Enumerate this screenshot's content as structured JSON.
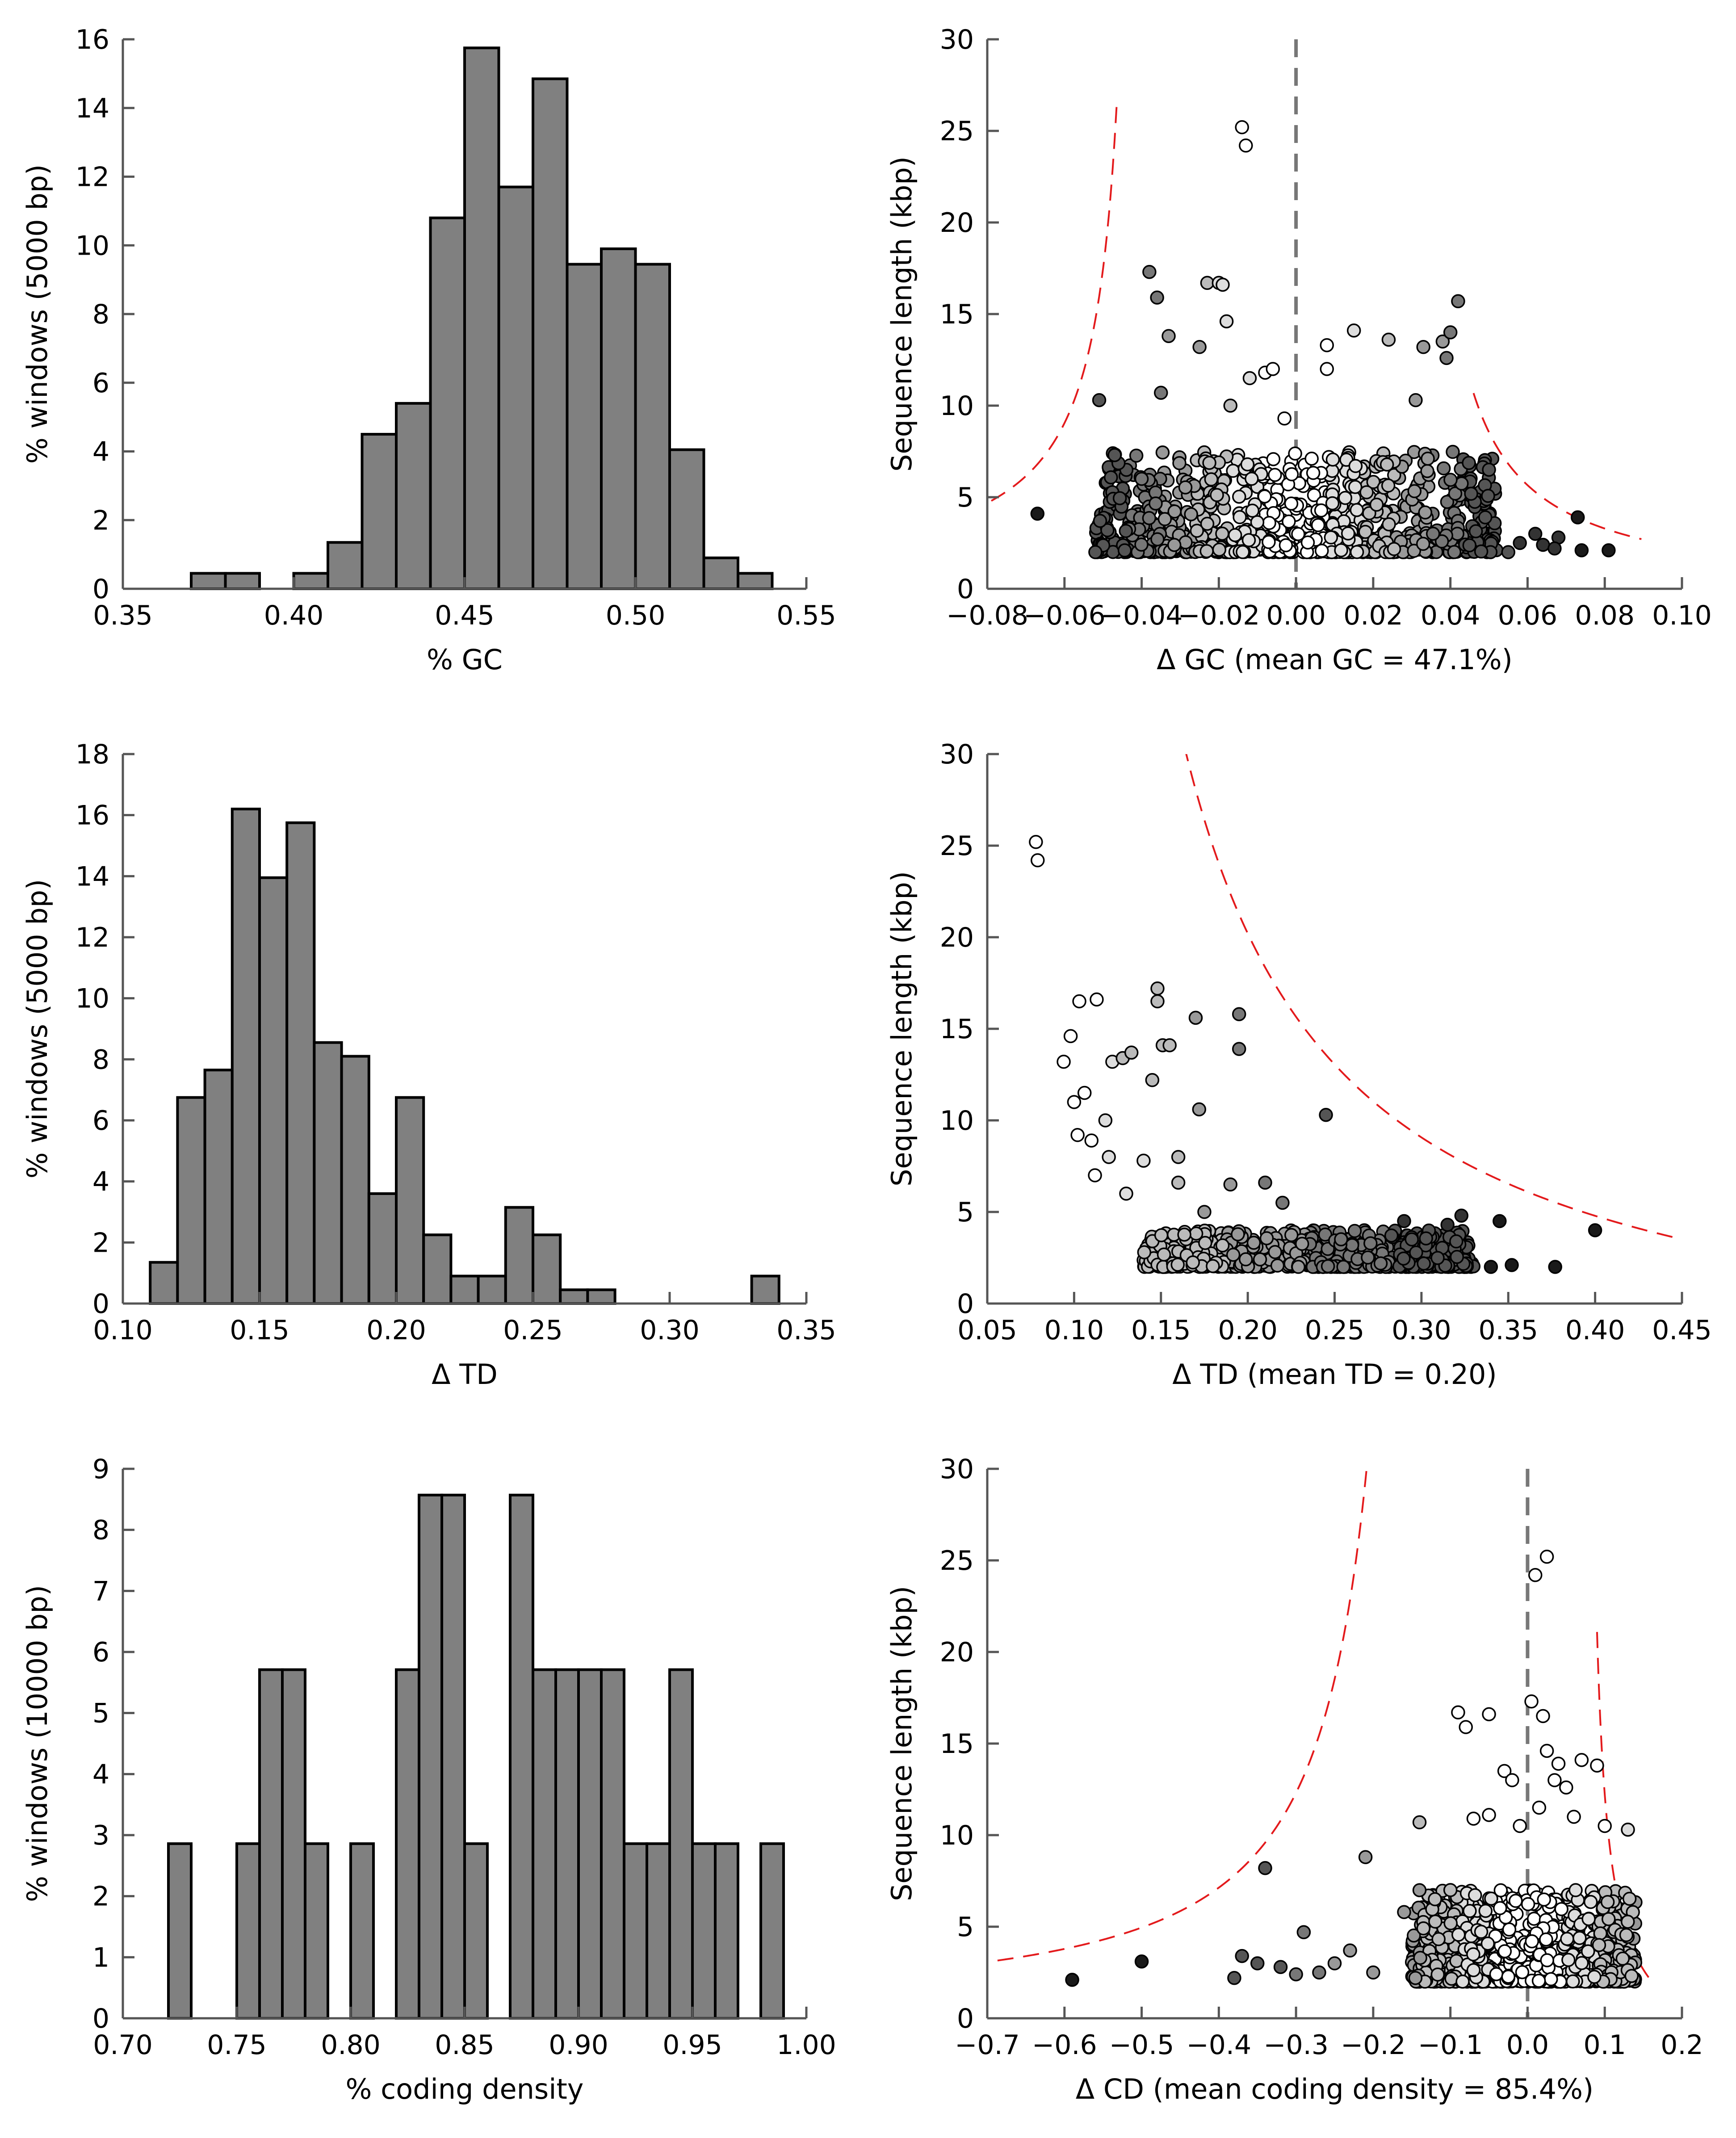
{
  "chart_data": [
    {
      "type": "bar",
      "id": "gc-hist",
      "xlabel": "% GC",
      "ylabel": "% windows (5000 bp)",
      "xlim": [
        0.35,
        0.55
      ],
      "ylim": [
        0,
        16
      ],
      "xticks": [
        "0.35",
        "0.40",
        "0.45",
        "0.50",
        "0.55"
      ],
      "yticks": [
        "0",
        "2",
        "4",
        "6",
        "8",
        "10",
        "12",
        "14",
        "16"
      ],
      "bin_width": 0.01,
      "bins": [
        {
          "start": 0.37,
          "value": 0.45
        },
        {
          "start": 0.38,
          "value": 0.45
        },
        {
          "start": 0.4,
          "value": 0.45
        },
        {
          "start": 0.41,
          "value": 1.35
        },
        {
          "start": 0.42,
          "value": 4.5
        },
        {
          "start": 0.43,
          "value": 5.4
        },
        {
          "start": 0.44,
          "value": 10.8
        },
        {
          "start": 0.45,
          "value": 15.75
        },
        {
          "start": 0.46,
          "value": 11.7
        },
        {
          "start": 0.47,
          "value": 14.85
        },
        {
          "start": 0.48,
          "value": 9.45
        },
        {
          "start": 0.49,
          "value": 9.9
        },
        {
          "start": 0.5,
          "value": 9.45
        },
        {
          "start": 0.51,
          "value": 4.05
        },
        {
          "start": 0.52,
          "value": 0.9
        },
        {
          "start": 0.53,
          "value": 0.45
        }
      ]
    },
    {
      "type": "scatter",
      "id": "gc-scatter",
      "xlabel": "Δ GC (mean GC = 47.1%)",
      "ylabel": "Sequence length (kbp)",
      "xlim": [
        -0.08,
        0.1
      ],
      "ylim": [
        0,
        30
      ],
      "xticks": [
        "−0.08",
        "−0.06",
        "−0.04",
        "−0.02",
        "0.00",
        "0.02",
        "0.04",
        "0.06",
        "0.08",
        "0.10"
      ],
      "yticks": [
        "0",
        "5",
        "10",
        "15",
        "20",
        "25",
        "30"
      ],
      "reference_line_x": 0,
      "cloud": {
        "center": 0,
        "halfwidth": 0.052,
        "ymin": 2,
        "ymax": 7.5,
        "count": 900
      },
      "points": [
        [
          -0.067,
          4.1,
          "#1a1a1a"
        ],
        [
          -0.052,
          2.0,
          "#555555"
        ],
        [
          -0.051,
          10.3,
          "#555555"
        ],
        [
          -0.038,
          17.3,
          "#777777"
        ],
        [
          -0.036,
          15.9,
          "#777777"
        ],
        [
          -0.033,
          13.8,
          "#999999"
        ],
        [
          -0.035,
          10.7,
          "#777777"
        ],
        [
          -0.047,
          7.3,
          "#555555"
        ],
        [
          -0.04,
          6.0,
          "#777777"
        ],
        [
          -0.025,
          13.2,
          "#999999"
        ],
        [
          -0.023,
          16.7,
          "#bbbbbb"
        ],
        [
          -0.02,
          16.7,
          "#dddddd"
        ],
        [
          -0.019,
          16.6,
          "#dddddd"
        ],
        [
          -0.018,
          14.6,
          "#dddddd"
        ],
        [
          -0.014,
          25.2,
          "#ffffff"
        ],
        [
          -0.013,
          24.2,
          "#ffffff"
        ],
        [
          -0.017,
          10.0,
          "#bbbbbb"
        ],
        [
          -0.012,
          11.5,
          "#dddddd"
        ],
        [
          -0.008,
          11.8,
          "#ffffff"
        ],
        [
          -0.006,
          12.0,
          "#ffffff"
        ],
        [
          -0.003,
          9.3,
          "#ffffff"
        ],
        [
          0.008,
          13.3,
          "#ffffff"
        ],
        [
          0.008,
          12.0,
          "#ffffff"
        ],
        [
          0.015,
          14.1,
          "#dddddd"
        ],
        [
          0.024,
          13.6,
          "#bbbbbb"
        ],
        [
          0.033,
          13.2,
          "#999999"
        ],
        [
          0.038,
          13.5,
          "#999999"
        ],
        [
          0.04,
          14.0,
          "#777777"
        ],
        [
          0.042,
          15.7,
          "#777777"
        ],
        [
          0.039,
          12.6,
          "#777777"
        ],
        [
          0.031,
          10.3,
          "#999999"
        ],
        [
          0.05,
          6.5,
          "#555555"
        ],
        [
          0.055,
          2.0,
          "#555555"
        ],
        [
          0.058,
          2.5,
          "#333333"
        ],
        [
          0.064,
          2.4,
          "#333333"
        ],
        [
          0.068,
          2.8,
          "#333333"
        ],
        [
          0.074,
          2.1,
          "#1a1a1a"
        ],
        [
          0.073,
          3.9,
          "#1a1a1a"
        ],
        [
          0.081,
          2.1,
          "#1a1a1a"
        ],
        [
          0.067,
          2.2,
          "#333333"
        ],
        [
          0.062,
          3.0,
          "#333333"
        ]
      ]
    },
    {
      "type": "bar",
      "id": "td-hist",
      "xlabel": "Δ TD",
      "ylabel": "% windows (5000 bp)",
      "xlim": [
        0.1,
        0.35
      ],
      "ylim": [
        0,
        18
      ],
      "xticks": [
        "0.10",
        "0.15",
        "0.20",
        "0.25",
        "0.30",
        "0.35"
      ],
      "yticks": [
        "0",
        "2",
        "4",
        "6",
        "8",
        "10",
        "12",
        "14",
        "16",
        "18"
      ],
      "bin_width": 0.01,
      "bins": [
        {
          "start": 0.11,
          "value": 1.35
        },
        {
          "start": 0.12,
          "value": 6.75
        },
        {
          "start": 0.13,
          "value": 7.65
        },
        {
          "start": 0.14,
          "value": 16.2
        },
        {
          "start": 0.15,
          "value": 13.95
        },
        {
          "start": 0.16,
          "value": 15.75
        },
        {
          "start": 0.17,
          "value": 8.55
        },
        {
          "start": 0.18,
          "value": 8.1
        },
        {
          "start": 0.19,
          "value": 3.6
        },
        {
          "start": 0.2,
          "value": 6.75
        },
        {
          "start": 0.21,
          "value": 2.25
        },
        {
          "start": 0.22,
          "value": 0.9
        },
        {
          "start": 0.23,
          "value": 0.9
        },
        {
          "start": 0.24,
          "value": 3.15
        },
        {
          "start": 0.25,
          "value": 2.25
        },
        {
          "start": 0.26,
          "value": 0.45
        },
        {
          "start": 0.27,
          "value": 0.45
        },
        {
          "start": 0.33,
          "value": 0.9
        }
      ]
    },
    {
      "type": "scatter",
      "id": "td-scatter",
      "xlabel": "Δ TD (mean TD = 0.20)",
      "ylabel": "Sequence length (kbp)",
      "xlim": [
        0.05,
        0.45
      ],
      "ylim": [
        0,
        30
      ],
      "xticks": [
        "0.05",
        "0.10",
        "0.15",
        "0.20",
        "0.25",
        "0.30",
        "0.35",
        "0.40",
        "0.45"
      ],
      "yticks": [
        "0",
        "5",
        "10",
        "15",
        "20",
        "25",
        "30"
      ],
      "cloud": {
        "xmin": 0.14,
        "xmax": 0.33,
        "ymin": 2,
        "ymax": 4.0,
        "count": 700
      },
      "points": [
        [
          0.078,
          25.2,
          "#ffffff"
        ],
        [
          0.079,
          24.2,
          "#ffffff"
        ],
        [
          0.098,
          14.6,
          "#ffffff"
        ],
        [
          0.103,
          16.5,
          "#ffffff"
        ],
        [
          0.113,
          16.6,
          "#ffffff"
        ],
        [
          0.094,
          13.2,
          "#ffffff"
        ],
        [
          0.1,
          11.0,
          "#ffffff"
        ],
        [
          0.106,
          11.5,
          "#ffffff"
        ],
        [
          0.122,
          13.2,
          "#dddddd"
        ],
        [
          0.128,
          13.4,
          "#bbbbbb"
        ],
        [
          0.133,
          13.7,
          "#bbbbbb"
        ],
        [
          0.148,
          17.2,
          "#bbbbbb"
        ],
        [
          0.148,
          16.5,
          "#bbbbbb"
        ],
        [
          0.151,
          14.1,
          "#bbbbbb"
        ],
        [
          0.155,
          14.1,
          "#bbbbbb"
        ],
        [
          0.145,
          12.2,
          "#bbbbbb"
        ],
        [
          0.17,
          15.6,
          "#999999"
        ],
        [
          0.195,
          15.8,
          "#777777"
        ],
        [
          0.195,
          13.9,
          "#777777"
        ],
        [
          0.172,
          10.6,
          "#999999"
        ],
        [
          0.245,
          10.3,
          "#555555"
        ],
        [
          0.29,
          4.5,
          "#333333"
        ],
        [
          0.315,
          4.3,
          "#333333"
        ],
        [
          0.323,
          4.8,
          "#333333"
        ],
        [
          0.345,
          4.5,
          "#1a1a1a"
        ],
        [
          0.34,
          2.0,
          "#1a1a1a"
        ],
        [
          0.352,
          2.1,
          "#1a1a1a"
        ],
        [
          0.377,
          2.0,
          "#1a1a1a"
        ],
        [
          0.4,
          4.0,
          "#1a1a1a"
        ],
        [
          0.11,
          8.9,
          "#ffffff"
        ],
        [
          0.102,
          9.2,
          "#ffffff"
        ],
        [
          0.12,
          8.0,
          "#dddddd"
        ],
        [
          0.13,
          6.0,
          "#dddddd"
        ],
        [
          0.112,
          7.0,
          "#ffffff"
        ],
        [
          0.118,
          10.0,
          "#dddddd"
        ],
        [
          0.14,
          7.8,
          "#dddddd"
        ],
        [
          0.16,
          6.6,
          "#bbbbbb"
        ],
        [
          0.175,
          5.0,
          "#999999"
        ],
        [
          0.19,
          6.5,
          "#999999"
        ],
        [
          0.21,
          6.6,
          "#777777"
        ],
        [
          0.22,
          5.5,
          "#777777"
        ],
        [
          0.16,
          8.0,
          "#bbbbbb"
        ]
      ]
    },
    {
      "type": "bar",
      "id": "cd-hist",
      "xlabel": "% coding density",
      "ylabel": "% windows (10000 bp)",
      "xlim": [
        0.7,
        1.0
      ],
      "ylim": [
        0,
        9
      ],
      "xticks": [
        "0.70",
        "0.75",
        "0.80",
        "0.85",
        "0.90",
        "0.95",
        "1.00"
      ],
      "yticks": [
        "0",
        "1",
        "2",
        "3",
        "4",
        "5",
        "6",
        "7",
        "8",
        "9"
      ],
      "bin_width": 0.01,
      "bins": [
        {
          "start": 0.72,
          "value": 2.86
        },
        {
          "start": 0.75,
          "value": 2.86
        },
        {
          "start": 0.76,
          "value": 5.71
        },
        {
          "start": 0.77,
          "value": 5.71
        },
        {
          "start": 0.78,
          "value": 2.86
        },
        {
          "start": 0.8,
          "value": 2.86
        },
        {
          "start": 0.82,
          "value": 5.71
        },
        {
          "start": 0.83,
          "value": 8.57
        },
        {
          "start": 0.84,
          "value": 8.57
        },
        {
          "start": 0.85,
          "value": 2.86
        },
        {
          "start": 0.87,
          "value": 8.57
        },
        {
          "start": 0.88,
          "value": 5.71
        },
        {
          "start": 0.89,
          "value": 5.71
        },
        {
          "start": 0.9,
          "value": 5.71
        },
        {
          "start": 0.91,
          "value": 5.71
        },
        {
          "start": 0.92,
          "value": 2.86
        },
        {
          "start": 0.93,
          "value": 2.86
        },
        {
          "start": 0.94,
          "value": 5.71
        },
        {
          "start": 0.95,
          "value": 2.86
        },
        {
          "start": 0.96,
          "value": 2.86
        },
        {
          "start": 0.98,
          "value": 2.86
        }
      ]
    },
    {
      "type": "scatter",
      "id": "cd-scatter",
      "xlabel": "Δ CD (mean coding density = 85.4%)",
      "ylabel": "Sequence length (kbp)",
      "xlim": [
        -0.7,
        0.2
      ],
      "ylim": [
        0,
        30
      ],
      "xticks": [
        "−0.7",
        "−0.6",
        "−0.5",
        "−0.4",
        "−0.3",
        "−0.2",
        "−0.1",
        "0.0",
        "0.1",
        "0.2"
      ],
      "yticks": [
        "0",
        "5",
        "10",
        "15",
        "20",
        "25",
        "30"
      ],
      "reference_line_x": 0,
      "cloud": {
        "xmin": -0.15,
        "xmax": 0.14,
        "ymin": 2,
        "ymax": 7.0,
        "count": 900
      },
      "points": [
        [
          -0.59,
          2.1,
          "#1a1a1a"
        ],
        [
          -0.5,
          3.1,
          "#1a1a1a"
        ],
        [
          -0.38,
          2.2,
          "#555555"
        ],
        [
          -0.37,
          3.4,
          "#555555"
        ],
        [
          -0.35,
          3.0,
          "#555555"
        ],
        [
          -0.34,
          8.2,
          "#555555"
        ],
        [
          -0.32,
          2.8,
          "#555555"
        ],
        [
          -0.3,
          2.4,
          "#777777"
        ],
        [
          -0.29,
          4.7,
          "#777777"
        ],
        [
          -0.27,
          2.5,
          "#777777"
        ],
        [
          -0.25,
          3.0,
          "#999999"
        ],
        [
          -0.23,
          3.7,
          "#999999"
        ],
        [
          -0.21,
          8.8,
          "#999999"
        ],
        [
          -0.2,
          2.5,
          "#999999"
        ],
        [
          -0.14,
          10.7,
          "#bbbbbb"
        ],
        [
          -0.09,
          16.7,
          "#ffffff"
        ],
        [
          -0.08,
          15.9,
          "#ffffff"
        ],
        [
          -0.05,
          16.6,
          "#ffffff"
        ],
        [
          -0.07,
          10.9,
          "#ffffff"
        ],
        [
          -0.05,
          11.1,
          "#ffffff"
        ],
        [
          -0.03,
          13.5,
          "#ffffff"
        ],
        [
          -0.02,
          13.0,
          "#ffffff"
        ],
        [
          -0.01,
          10.5,
          "#ffffff"
        ],
        [
          0.005,
          17.3,
          "#ffffff"
        ],
        [
          0.01,
          24.2,
          "#ffffff"
        ],
        [
          0.025,
          25.2,
          "#ffffff"
        ],
        [
          0.02,
          16.5,
          "#ffffff"
        ],
        [
          0.025,
          14.6,
          "#ffffff"
        ],
        [
          0.04,
          13.9,
          "#ffffff"
        ],
        [
          0.035,
          13.0,
          "#ffffff"
        ],
        [
          0.05,
          12.6,
          "#ffffff"
        ],
        [
          0.07,
          14.1,
          "#ffffff"
        ],
        [
          0.09,
          13.8,
          "#ffffff"
        ],
        [
          0.1,
          10.5,
          "#ffffff"
        ],
        [
          0.13,
          10.3,
          "#dddddd"
        ],
        [
          0.06,
          11.0,
          "#ffffff"
        ],
        [
          0.015,
          11.5,
          "#ffffff"
        ],
        [
          -0.1,
          7.0,
          "#bbbbbb"
        ],
        [
          -0.12,
          6.5,
          "#bbbbbb"
        ],
        [
          -0.16,
          5.8,
          "#999999"
        ]
      ]
    }
  ]
}
